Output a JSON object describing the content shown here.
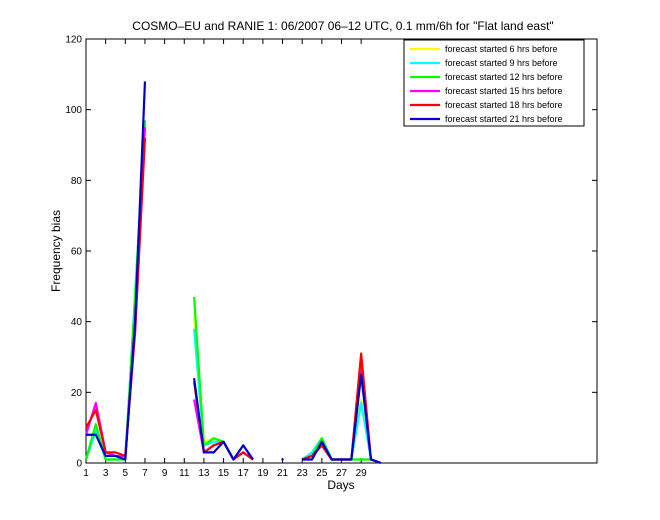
{
  "chart_data": {
    "type": "line",
    "title": "COSMO–EU and RANIE 1: 06/2007 06–12 UTC, 0.1 mm/6h for \"Flat land east\"",
    "xlabel": "Days",
    "ylabel": "Frequency bias",
    "xlim": [
      1,
      53
    ],
    "ylim": [
      0,
      120
    ],
    "xticks": [
      1,
      3,
      5,
      7,
      9,
      11,
      13,
      15,
      17,
      19,
      21,
      23,
      25,
      27,
      29
    ],
    "xtick_labels": [
      "1",
      "3",
      "5",
      "7",
      "9",
      "11",
      "13",
      "15",
      "17",
      "19",
      "21",
      "23",
      "25",
      "27",
      "29"
    ],
    "yticks": [
      0,
      20,
      40,
      60,
      80,
      100,
      120
    ],
    "ytick_labels": [
      "0",
      "20",
      "40",
      "60",
      "80",
      "100",
      "120"
    ],
    "grid": false,
    "legend_position": "top-right",
    "series": [
      {
        "name": "forecast started 6 hrs before",
        "color": "#ffff00",
        "x": [
          1,
          2,
          3,
          4,
          5,
          6,
          7,
          12,
          13,
          14,
          15,
          16,
          17,
          18,
          23,
          24,
          25,
          26,
          27,
          28,
          29,
          30,
          31
        ],
        "y": [
          1,
          9,
          1,
          1,
          1,
          47,
          95,
          42,
          6,
          7,
          6,
          1,
          3,
          1,
          1,
          3,
          7,
          1,
          1,
          1,
          18,
          1,
          0
        ]
      },
      {
        "name": "forecast started 9 hrs before",
        "color": "#00ffff",
        "x": [
          1,
          2,
          3,
          4,
          5,
          6,
          7,
          12,
          13,
          14,
          15,
          16,
          17,
          18,
          23,
          24,
          25,
          26,
          27,
          28,
          29,
          30,
          31
        ],
        "y": [
          1,
          9,
          1,
          1,
          1,
          48,
          96,
          38,
          5,
          6,
          6,
          1,
          3,
          1,
          1,
          3,
          7,
          1,
          1,
          1,
          17,
          1,
          0
        ]
      },
      {
        "name": "forecast started 12 hrs before",
        "color": "#00ff00",
        "x": [
          1,
          2,
          3,
          4,
          5,
          6,
          7,
          12,
          13,
          14,
          15,
          16,
          17,
          18,
          23,
          24,
          25,
          26,
          27,
          28,
          29,
          30,
          31
        ],
        "y": [
          1,
          11,
          1,
          1,
          1,
          47,
          97,
          47,
          5,
          7,
          6,
          1,
          3,
          1,
          1,
          2,
          7,
          1,
          1,
          1,
          1,
          1,
          0
        ]
      },
      {
        "name": "forecast started 15 hrs before",
        "color": "#ff00ff",
        "x": [
          1,
          2,
          3,
          4,
          5,
          6,
          7,
          12,
          13,
          14,
          15,
          16,
          17,
          18,
          23,
          24,
          25,
          26,
          27,
          28,
          29,
          30,
          31
        ],
        "y": [
          8,
          17,
          3,
          2,
          2,
          40,
          95,
          18,
          3,
          5,
          6,
          1,
          3,
          1,
          1,
          2,
          5,
          1,
          1,
          1,
          27,
          1,
          0
        ]
      },
      {
        "name": "forecast started 18 hrs before",
        "color": "#ff0000",
        "x": [
          1,
          2,
          3,
          4,
          5,
          6,
          7,
          12,
          13,
          14,
          15,
          16,
          17,
          18,
          23,
          24,
          25,
          26,
          27,
          28,
          29,
          30,
          31
        ],
        "y": [
          10,
          15,
          3,
          3,
          2,
          37,
          92,
          23,
          3,
          5,
          6,
          1,
          3,
          1,
          1,
          2,
          5,
          1,
          1,
          1,
          31,
          1,
          0
        ]
      },
      {
        "name": "forecast started 21 hrs before",
        "color": "#0000cc",
        "x": [
          1,
          2,
          3,
          4,
          5,
          6,
          7,
          12,
          13,
          14,
          15,
          16,
          17,
          18,
          21,
          23,
          24,
          25,
          26,
          27,
          28,
          29,
          30,
          31
        ],
        "y": [
          8,
          8,
          2,
          2,
          1,
          40,
          108,
          24,
          3,
          3,
          6,
          1,
          5,
          1,
          1,
          1,
          1,
          6,
          1,
          1,
          1,
          25,
          1,
          0
        ]
      }
    ]
  }
}
